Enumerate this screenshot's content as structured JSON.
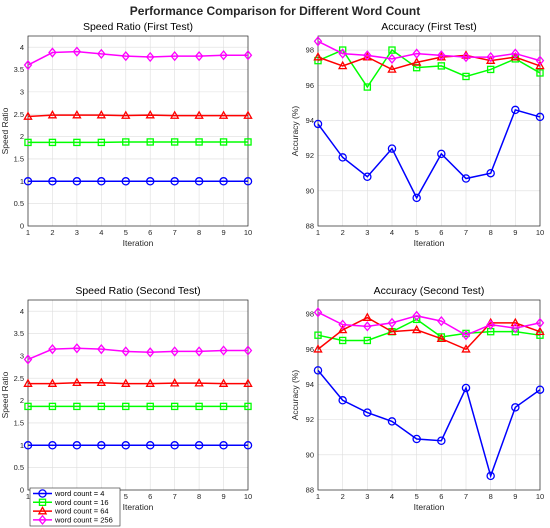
{
  "figure_title": "Performance Comparison for Different Word Count",
  "legend": [
    {
      "label": "word count = 4",
      "color": "#0000ff",
      "marker": "circle"
    },
    {
      "label": "word count = 16",
      "color": "#00ff00",
      "marker": "square"
    },
    {
      "label": "word count = 64",
      "color": "#ff0000",
      "marker": "triangle"
    },
    {
      "label": "word count = 256",
      "color": "#ff00ff",
      "marker": "diamond"
    }
  ],
  "chart_data": [
    {
      "type": "line",
      "title": "Speed Ratio (First Test)",
      "xlabel": "Iteration",
      "ylabel": "Speed Ratio",
      "x": [
        1,
        2,
        3,
        4,
        5,
        6,
        7,
        8,
        9,
        10
      ],
      "xlim": [
        1,
        10
      ],
      "ylim": [
        0,
        4.25
      ],
      "yticks": [
        "0",
        "0.5",
        "1",
        "1.5",
        "2",
        "2.5",
        "3",
        "3.5",
        "4"
      ],
      "ytick_values": [
        0,
        0.5,
        1,
        1.5,
        2,
        2.5,
        3,
        3.5,
        4
      ],
      "xticks": [
        "1",
        "2",
        "3",
        "4",
        "5",
        "6",
        "7",
        "8",
        "9",
        "10"
      ],
      "grid": true,
      "series": [
        {
          "name": "word count = 4",
          "values": [
            1,
            1,
            1,
            1,
            1,
            1,
            1,
            1,
            1,
            1
          ]
        },
        {
          "name": "word count = 16",
          "values": [
            1.87,
            1.87,
            1.87,
            1.87,
            1.88,
            1.88,
            1.88,
            1.88,
            1.88,
            1.88
          ]
        },
        {
          "name": "word count = 64",
          "values": [
            2.45,
            2.48,
            2.48,
            2.48,
            2.47,
            2.48,
            2.47,
            2.47,
            2.47,
            2.47
          ]
        },
        {
          "name": "word count = 256",
          "values": [
            3.6,
            3.88,
            3.9,
            3.85,
            3.8,
            3.78,
            3.8,
            3.8,
            3.82,
            3.82
          ]
        }
      ]
    },
    {
      "type": "line",
      "title": "Accuracy (First Test)",
      "xlabel": "Iteration",
      "ylabel": "Accuracy (%)",
      "x": [
        1,
        2,
        3,
        4,
        5,
        6,
        7,
        8,
        9,
        10
      ],
      "xlim": [
        1,
        10
      ],
      "ylim": [
        88,
        98.8
      ],
      "yticks": [
        "88",
        "90",
        "92",
        "94",
        "96",
        "98"
      ],
      "ytick_values": [
        88,
        90,
        92,
        94,
        96,
        98
      ],
      "xticks": [
        "1",
        "2",
        "3",
        "4",
        "5",
        "6",
        "7",
        "8",
        "9",
        "10"
      ],
      "grid": true,
      "series": [
        {
          "name": "word count = 4",
          "values": [
            93.8,
            91.9,
            90.8,
            92.4,
            89.6,
            92.1,
            90.7,
            91.0,
            94.6,
            94.2
          ]
        },
        {
          "name": "word count = 16",
          "values": [
            97.4,
            98.0,
            95.9,
            98.0,
            97.0,
            97.1,
            96.5,
            96.9,
            97.5,
            96.7
          ]
        },
        {
          "name": "word count = 64",
          "values": [
            97.6,
            97.1,
            97.6,
            96.9,
            97.3,
            97.6,
            97.7,
            97.4,
            97.6,
            97.1
          ]
        },
        {
          "name": "word count = 256",
          "values": [
            98.5,
            97.8,
            97.7,
            97.5,
            97.8,
            97.7,
            97.6,
            97.6,
            97.8,
            97.4
          ]
        }
      ]
    },
    {
      "type": "line",
      "title": "Speed Ratio (Second Test)",
      "xlabel": "Iteration",
      "ylabel": "Speed Ratio",
      "x": [
        1,
        2,
        3,
        4,
        5,
        6,
        7,
        8,
        9,
        10
      ],
      "xlim": [
        1,
        10
      ],
      "ylim": [
        0,
        4.25
      ],
      "yticks": [
        "0",
        "0.5",
        "1",
        "1.5",
        "2",
        "2.5",
        "3",
        "3.5",
        "4"
      ],
      "ytick_values": [
        0,
        0.5,
        1,
        1.5,
        2,
        2.5,
        3,
        3.5,
        4
      ],
      "xticks": [
        "1",
        "2",
        "3",
        "4",
        "5",
        "6",
        "7",
        "8",
        "9",
        "10"
      ],
      "grid": true,
      "series": [
        {
          "name": "word count = 4",
          "values": [
            1,
            1,
            1,
            1,
            1,
            1,
            1,
            1,
            1,
            1
          ]
        },
        {
          "name": "word count = 16",
          "values": [
            1.87,
            1.87,
            1.87,
            1.87,
            1.87,
            1.87,
            1.87,
            1.87,
            1.87,
            1.87
          ]
        },
        {
          "name": "word count = 64",
          "values": [
            2.38,
            2.38,
            2.4,
            2.4,
            2.38,
            2.38,
            2.39,
            2.39,
            2.38,
            2.38
          ]
        },
        {
          "name": "word count = 256",
          "values": [
            2.92,
            3.15,
            3.17,
            3.15,
            3.1,
            3.08,
            3.1,
            3.1,
            3.12,
            3.12
          ]
        }
      ]
    },
    {
      "type": "line",
      "title": "Accuracy (Second Test)",
      "xlabel": "Iteration",
      "ylabel": "Accuracy (%)",
      "x": [
        1,
        2,
        3,
        4,
        5,
        6,
        7,
        8,
        9,
        10
      ],
      "xlim": [
        1,
        10
      ],
      "ylim": [
        88,
        98.8
      ],
      "yticks": [
        "88",
        "90",
        "92",
        "94",
        "96",
        "98"
      ],
      "ytick_values": [
        88,
        90,
        92,
        94,
        96,
        98
      ],
      "xticks": [
        "1",
        "2",
        "3",
        "4",
        "5",
        "6",
        "7",
        "8",
        "9",
        "10"
      ],
      "grid": true,
      "series": [
        {
          "name": "word count = 4",
          "values": [
            94.8,
            93.1,
            92.4,
            91.9,
            90.9,
            90.8,
            93.8,
            88.8,
            92.7,
            93.7
          ]
        },
        {
          "name": "word count = 16",
          "values": [
            96.8,
            96.5,
            96.5,
            97.0,
            97.7,
            96.7,
            96.9,
            97.0,
            97.0,
            96.8
          ]
        },
        {
          "name": "word count = 64",
          "values": [
            96.0,
            97.1,
            97.8,
            97.0,
            97.1,
            96.6,
            96.0,
            97.5,
            97.5,
            97.0
          ]
        },
        {
          "name": "word count = 256",
          "values": [
            98.1,
            97.4,
            97.3,
            97.5,
            97.9,
            97.6,
            96.8,
            97.4,
            97.2,
            97.5
          ]
        }
      ]
    }
  ]
}
